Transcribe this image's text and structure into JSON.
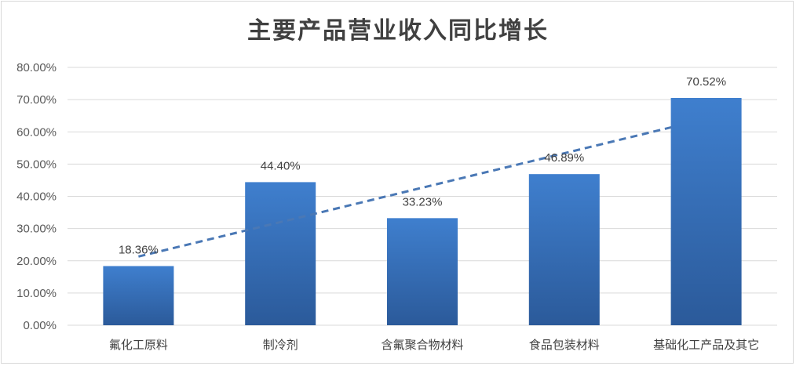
{
  "chart_data": {
    "type": "bar",
    "title": "主要产品营业收入同比增长",
    "categories": [
      "氟化工原料",
      "制冷剂",
      "含氟聚合物材料",
      "食品包装材料",
      "基础化工产品及其它"
    ],
    "values": [
      18.36,
      44.4,
      33.23,
      46.89,
      70.52
    ],
    "data_labels": [
      "18.36%",
      "44.40%",
      "33.23%",
      "46.89%",
      "70.52%"
    ],
    "ylim": [
      0,
      80
    ],
    "yticks": [
      0,
      10,
      20,
      30,
      40,
      50,
      60,
      70,
      80
    ],
    "ytick_labels": [
      "0.00%",
      "10.00%",
      "20.00%",
      "30.00%",
      "40.00%",
      "50.00%",
      "60.00%",
      "70.00%",
      "80.00%"
    ],
    "xlabel": "",
    "ylabel": "",
    "grid": true,
    "legend": "none",
    "trendline": {
      "type": "linear",
      "style": "dashed"
    },
    "colors": {
      "bar_top": "#3f7fce",
      "bar_bottom": "#2b5a9a",
      "trend": "#4a78b5",
      "grid": "#d9d9d9"
    }
  }
}
